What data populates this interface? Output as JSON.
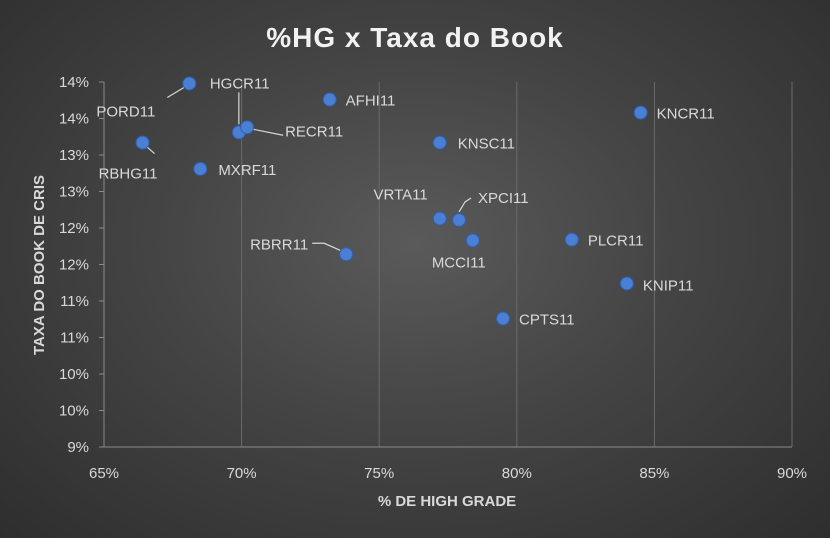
{
  "chart_data": {
    "type": "scatter",
    "title": "%HG x Taxa do Book",
    "xlabel": "% DE HIGH GRADE",
    "ylabel": "TAXA DO BOOK DE CRIS",
    "xlim": [
      65,
      90
    ],
    "ylim": [
      9,
      14
    ],
    "x_ticks": [
      "65%",
      "70%",
      "75%",
      "80%",
      "85%",
      "90%"
    ],
    "y_ticks": [
      "9%",
      "10%",
      "10%",
      "11%",
      "11%",
      "12%",
      "12%",
      "13%",
      "13%",
      "14%",
      "14%"
    ],
    "grid": "vertical",
    "points": [
      {
        "label": "PORD11",
        "x": 68.1,
        "y": 13.98
      },
      {
        "label": "HGCR11",
        "x": 69.9,
        "y": 13.31
      },
      {
        "label": "RECR11",
        "x": 70.2,
        "y": 13.38
      },
      {
        "label": "AFHI11",
        "x": 73.2,
        "y": 13.76
      },
      {
        "label": "KNCR11",
        "x": 84.5,
        "y": 13.58
      },
      {
        "label": "RBHG11",
        "x": 66.4,
        "y": 13.17
      },
      {
        "label": "MXRF11",
        "x": 68.5,
        "y": 12.81
      },
      {
        "label": "KNSC11",
        "x": 77.2,
        "y": 13.17
      },
      {
        "label": "VRTA11",
        "x": 77.2,
        "y": 12.13
      },
      {
        "label": "XPCI11",
        "x": 77.9,
        "y": 12.11
      },
      {
        "label": "MCCI11",
        "x": 78.4,
        "y": 11.83
      },
      {
        "label": "PLCR11",
        "x": 82.0,
        "y": 11.84
      },
      {
        "label": "RBRR11",
        "x": 73.8,
        "y": 11.64
      },
      {
        "label": "KNIP11",
        "x": 84.0,
        "y": 11.24
      },
      {
        "label": "CPTS11",
        "x": 79.5,
        "y": 10.76
      }
    ]
  }
}
